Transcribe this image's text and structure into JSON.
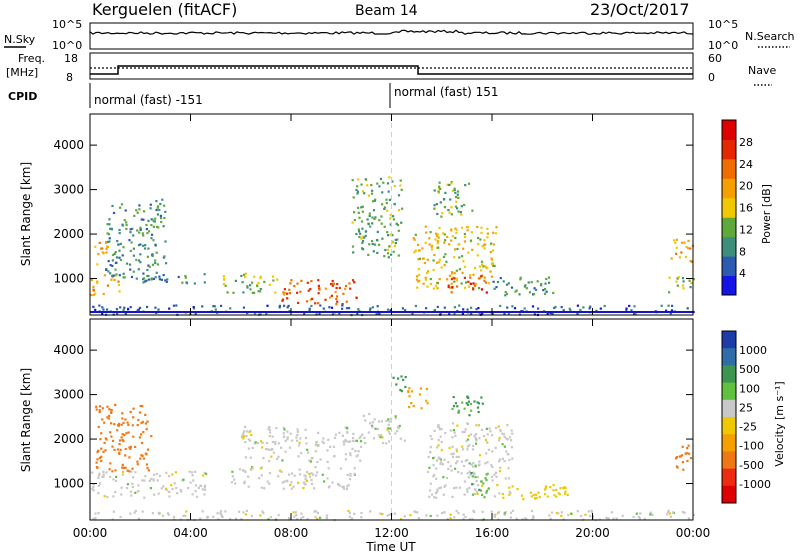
{
  "header": {
    "station": "Kerguelen (fitACF)",
    "beam": "Beam 14",
    "date": "23/Oct/2017"
  },
  "noise_panel": {
    "left_label": "N.Sky",
    "left_ticks": [
      "10^5",
      "10^0"
    ],
    "right_ticks": [
      "10^5",
      "10^0"
    ],
    "right_label": "N.Search"
  },
  "freq_panel": {
    "left_label_lines": [
      "Freq.",
      "[MHz]"
    ],
    "left_ticks": [
      "18",
      "8"
    ],
    "right_ticks": [
      "60",
      "0"
    ],
    "right_label": "Nave"
  },
  "cpid_panel": {
    "label": "CPID",
    "segments": [
      {
        "start": "00:00",
        "text": "normal (fast) -151"
      },
      {
        "start": "12:00",
        "text": "normal (fast) 151"
      }
    ]
  },
  "colors": {
    "power_scale": [
      "#1414e6",
      "#2b5bb0",
      "#3c8f7a",
      "#5fa83c",
      "#f0c800",
      "#f5a000",
      "#f06e00",
      "#e62800",
      "#dc0000"
    ],
    "velocity_scale": [
      "#dc0000",
      "#ee2a10",
      "#f07814",
      "#f5a000",
      "#f0c800",
      "#c8c8c8",
      "#60c040",
      "#3c9650",
      "#2f6ca8",
      "#1e3ca8"
    ]
  },
  "chart_data": [
    {
      "type": "heatmap",
      "name": "Power",
      "xlabel": "Time UT",
      "ylabel": "Slant Range [km]",
      "x_ticks": [
        "00:00",
        "04:00",
        "08:00",
        "12:00",
        "16:00",
        "20:00",
        "00:00"
      ],
      "y_ticks": [
        1000,
        2000,
        3000,
        4000
      ],
      "xlim_hours": [
        0,
        24
      ],
      "ylim_km": [
        180,
        4700
      ],
      "colorbar_label": "Power [dB]",
      "colorbar_ticks": [
        4,
        8,
        12,
        16,
        20,
        24,
        28
      ],
      "regions": [
        {
          "t0": 0.0,
          "t1": 1.2,
          "r0": 650,
          "r1": 1100,
          "db": 20
        },
        {
          "t0": 0.0,
          "t1": 0.7,
          "r0": 1300,
          "r1": 1850,
          "db": 18
        },
        {
          "t0": 0.6,
          "t1": 3.0,
          "r0": 1000,
          "r1": 2800,
          "db": 9
        },
        {
          "t0": 2.0,
          "t1": 4.6,
          "r0": 900,
          "r1": 1150,
          "db": 8
        },
        {
          "t0": 5.2,
          "t1": 7.5,
          "r0": 700,
          "r1": 1150,
          "db": 13
        },
        {
          "t0": 7.5,
          "t1": 10.6,
          "r0": 450,
          "r1": 1000,
          "db": 24
        },
        {
          "t0": 10.4,
          "t1": 12.4,
          "r0": 1500,
          "r1": 3300,
          "db": 11
        },
        {
          "t0": 12.8,
          "t1": 16.2,
          "r0": 800,
          "r1": 2200,
          "db": 16
        },
        {
          "t0": 14.2,
          "t1": 15.8,
          "r0": 700,
          "r1": 1100,
          "db": 26
        },
        {
          "t0": 13.6,
          "t1": 15.2,
          "r0": 2400,
          "r1": 3200,
          "db": 12
        },
        {
          "t0": 16.0,
          "t1": 18.4,
          "r0": 600,
          "r1": 1050,
          "db": 10
        },
        {
          "t0": 23.0,
          "t1": 24.0,
          "r0": 1400,
          "r1": 1900,
          "db": 18
        },
        {
          "t0": 23.0,
          "t1": 24.0,
          "r0": 700,
          "r1": 1100,
          "db": 12
        },
        {
          "t0": 0.0,
          "t1": 24.0,
          "r0": 200,
          "r1": 420,
          "db": 6
        }
      ]
    },
    {
      "type": "heatmap",
      "name": "Velocity",
      "xlabel": "Time UT",
      "ylabel": "Slant Range [km]",
      "x_ticks": [
        "00:00",
        "04:00",
        "08:00",
        "12:00",
        "16:00",
        "20:00",
        "00:00"
      ],
      "y_ticks": [
        1000,
        2000,
        3000,
        4000
      ],
      "xlim_hours": [
        0,
        24
      ],
      "ylim_km": [
        180,
        4700
      ],
      "colorbar_label": "Velocity [m s⁻¹]",
      "colorbar_ticks": [
        "1000",
        "500",
        "100",
        "25",
        "-25",
        "-100",
        "-500",
        "-1000"
      ],
      "regions": [
        {
          "t0": 0.2,
          "t1": 2.4,
          "r0": 1300,
          "r1": 2800,
          "v": -300
        },
        {
          "t0": 0.0,
          "t1": 4.6,
          "r0": 700,
          "r1": 1300,
          "v": 0
        },
        {
          "t0": 5.6,
          "t1": 10.5,
          "r0": 900,
          "r1": 1400,
          "v": 0
        },
        {
          "t0": 6.0,
          "t1": 10.8,
          "r0": 1500,
          "r1": 2300,
          "v": 0
        },
        {
          "t0": 10.8,
          "t1": 12.5,
          "r0": 1900,
          "r1": 2600,
          "v": 0
        },
        {
          "t0": 12.0,
          "t1": 12.6,
          "r0": 3100,
          "r1": 3500,
          "v": 150
        },
        {
          "t0": 12.6,
          "t1": 13.4,
          "r0": 2700,
          "r1": 3200,
          "v": -150
        },
        {
          "t0": 13.4,
          "t1": 16.8,
          "r0": 700,
          "r1": 2400,
          "v": 0
        },
        {
          "t0": 15.0,
          "t1": 15.8,
          "r0": 700,
          "r1": 1300,
          "v": 80
        },
        {
          "t0": 14.2,
          "t1": 15.6,
          "r0": 2500,
          "r1": 3000,
          "v": 120
        },
        {
          "t0": 16.0,
          "t1": 19.0,
          "r0": 650,
          "r1": 1000,
          "v": -60
        },
        {
          "t0": 23.2,
          "t1": 24.0,
          "r0": 1300,
          "r1": 1900,
          "v": -300
        },
        {
          "t0": 0.0,
          "t1": 24.0,
          "r0": 200,
          "r1": 420,
          "v": 0
        }
      ]
    }
  ]
}
